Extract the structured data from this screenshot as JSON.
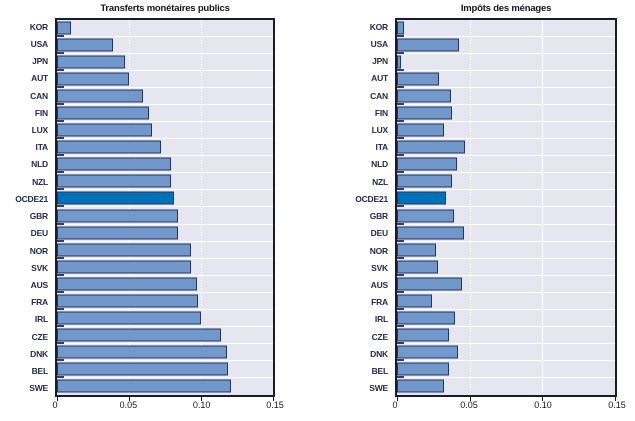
{
  "figure": {
    "description": "Two horizontal bar charts comparing OECD countries",
    "n_categories": 22
  },
  "colors": {
    "bar_fill": "#7297cb",
    "bar_border": "#24355f",
    "highlight_fill": "#0070b8",
    "plot_background": "#e6e6f1",
    "plot_border": "#1b1b30",
    "gridline": "#ffffff",
    "text": "#1a2038"
  },
  "chart_data": [
    {
      "type": "bar",
      "orientation": "horizontal",
      "title": "Transferts monétaires publics",
      "categories": [
        "KOR",
        "USA",
        "JPN",
        "AUT",
        "CAN",
        "FIN",
        "LUX",
        "ITA",
        "NLD",
        "NZL",
        "OCDE21",
        "GBR",
        "DEU",
        "NOR",
        "SVK",
        "AUS",
        "FRA",
        "IRL",
        "CZE",
        "DNK",
        "BEL",
        "SWE"
      ],
      "values": [
        0.01,
        0.039,
        0.047,
        0.05,
        0.06,
        0.064,
        0.066,
        0.072,
        0.079,
        0.079,
        0.081,
        0.084,
        0.084,
        0.093,
        0.093,
        0.097,
        0.098,
        0.1,
        0.114,
        0.118,
        0.119,
        0.121
      ],
      "highlight_category": "OCDE21",
      "xlim": [
        0,
        0.15
      ],
      "x_tick_values": [
        0,
        0.05,
        0.1,
        0.15
      ],
      "x_tick_labels": [
        "0",
        "0.05",
        "0.10",
        "0.15"
      ],
      "grid_x_values": [
        0.05,
        0.1
      ],
      "grid_x_styles": [
        "dotted",
        "dotted"
      ],
      "legend": "none"
    },
    {
      "type": "bar",
      "orientation": "horizontal",
      "title": "Impôts des ménages",
      "categories": [
        "KOR",
        "USA",
        "JPN",
        "AUT",
        "CAN",
        "FIN",
        "LUX",
        "ITA",
        "NLD",
        "NZL",
        "OCDE21",
        "GBR",
        "DEU",
        "NOR",
        "SVK",
        "AUS",
        "FRA",
        "IRL",
        "CZE",
        "DNK",
        "BEL",
        "SWE"
      ],
      "values": [
        0.005,
        0.043,
        0.003,
        0.029,
        0.037,
        0.038,
        0.032,
        0.047,
        0.041,
        0.038,
        0.034,
        0.039,
        0.046,
        0.027,
        0.028,
        0.045,
        0.024,
        0.04,
        0.036,
        0.042,
        0.036,
        0.032
      ],
      "highlight_category": "OCDE21",
      "xlim": [
        0,
        0.15
      ],
      "x_tick_values": [
        0,
        0.05,
        0.1,
        0.15
      ],
      "x_tick_labels": [
        "0",
        "0.05",
        "0.10",
        "0.15"
      ],
      "grid_x_values": [
        0.05,
        0.1
      ],
      "grid_x_styles": [
        "dotted",
        "solid"
      ],
      "legend": "none"
    }
  ]
}
